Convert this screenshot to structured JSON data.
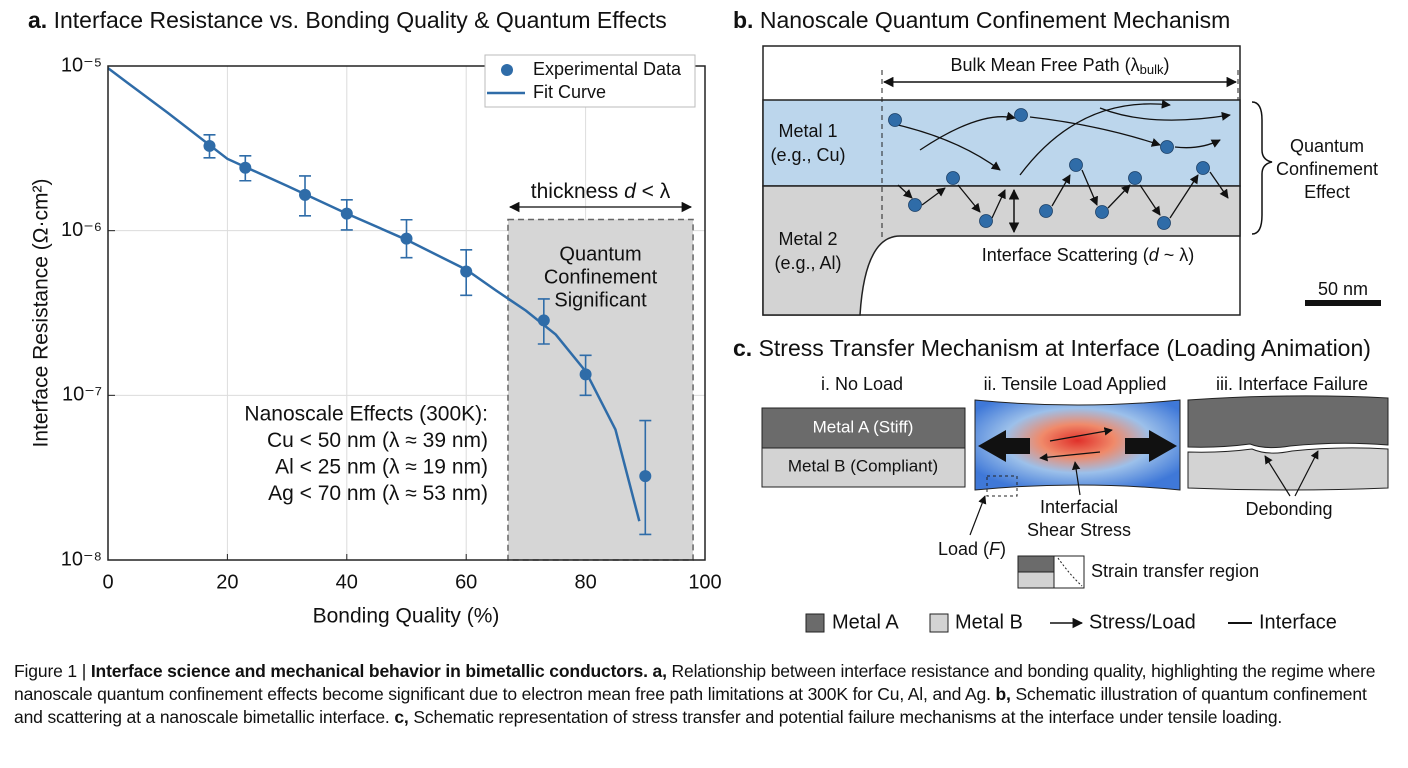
{
  "chart_data": {
    "type": "scatter",
    "title_label": "a.",
    "title": "Interface Resistance vs. Bonding Quality & Quantum Effects",
    "xlabel": "Bonding Quality (%)",
    "ylabel": "Interface Resistance (Ω·cm²)",
    "xlim": [
      0,
      100
    ],
    "xticks": [
      0,
      20,
      40,
      60,
      80,
      100
    ],
    "ylim": [
      1e-08,
      1e-05
    ],
    "yscale": "log",
    "yticks": [
      {
        "value": 1e-08,
        "label": "10⁻⁸"
      },
      {
        "value": 1e-07,
        "label": "10⁻⁷"
      },
      {
        "value": 1e-06,
        "label": "10⁻⁶"
      },
      {
        "value": 1e-05,
        "label": "10⁻⁵"
      }
    ],
    "grid": true,
    "legend": "upper right",
    "series": [
      {
        "name": "Experimental Data",
        "type": "scatter",
        "color": "#2f6ca8",
        "x": [
          17,
          23,
          33,
          40,
          50,
          60,
          73,
          80,
          90
        ],
        "values": [
          3.27e-06,
          2.41e-06,
          1.65e-06,
          1.27e-06,
          8.95e-07,
          5.65e-07,
          2.85e-07,
          1.34e-07,
          3.23e-08
        ],
        "yerr": [
          [
            5e-07,
            5.5e-07
          ],
          [
            4e-07,
            4.4e-07
          ],
          [
            4.2e-07,
            5e-07
          ],
          [
            2.6e-07,
            2.7e-07
          ],
          [
            2.1e-07,
            2.7e-07
          ],
          [
            1.6e-07,
            2e-07
          ],
          [
            8e-08,
            1e-07
          ],
          [
            3.4e-08,
            4.1e-08
          ],
          [
            1.8e-08,
            3.8e-08
          ]
        ]
      },
      {
        "name": "Fit Curve",
        "type": "line",
        "color": "#2f6ca8",
        "x": [
          0,
          5,
          10,
          20,
          30,
          40,
          50,
          60,
          65,
          70,
          75,
          80,
          85,
          89
        ],
        "values": [
          9.7e-06,
          7.1e-06,
          5.2e-06,
          2.73e-06,
          1.87e-06,
          1.27e-06,
          8.8e-07,
          5.8e-07,
          4.33e-07,
          3.27e-07,
          2.34e-07,
          1.4e-07,
          6.2e-08,
          1.72e-08
        ]
      }
    ],
    "region": {
      "x": [
        67,
        98
      ],
      "top": 1.17e-06,
      "label": [
        "Quantum",
        "Confinement",
        "Significant"
      ],
      "annotation": [
        "thickness ",
        "d",
        " < λ"
      ]
    },
    "note": [
      "Nanoscale Effects (300K):",
      "Cu < 50 nm (λ ≈ 39 nm)",
      "Al < 25 nm (λ ≈ 19 nm)",
      "Ag < 70 nm (λ ≈ 53 nm)"
    ]
  },
  "panel_b": {
    "label": "b.",
    "title": "Nanoscale Quantum Confinement Mechanism",
    "mfp": [
      "Bulk Mean Free Path (λ",
      "bulk",
      ")"
    ],
    "metal1": [
      "Metal 1",
      "(e.g., Cu)"
    ],
    "metal2": [
      "Metal 2",
      "(e.g., Al)"
    ],
    "scattering": [
      "Interface Scattering (",
      "d",
      " ~ λ)"
    ],
    "effect": [
      "Quantum",
      "Confinement",
      "Effect"
    ],
    "scale_bar": "50 nm"
  },
  "panel_c": {
    "label": "c.",
    "title": "Stress Transfer Mechanism at Interface (Loading Animation)",
    "stages": [
      "i. No Load",
      "ii. Tensile Load Applied",
      "iii. Interface Failure"
    ],
    "metal_a": "Metal A (Stiff)",
    "metal_b": "Metal B (Compliant)",
    "shear": [
      "Interfacial",
      "Shear Stress"
    ],
    "load": [
      "Load (",
      "F",
      ")"
    ],
    "strain": "Strain transfer region",
    "debonding": "Debonding",
    "legend": [
      "Metal A",
      "Metal B",
      "Stress/Load",
      "Interface"
    ]
  },
  "caption": {
    "segments": [
      {
        "text": "Figure 1 | ",
        "bold": false
      },
      {
        "text": "Interface science and mechanical behavior in bimetallic conductors. a, ",
        "bold": true
      },
      {
        "text": "Relationship between interface resistance and bonding quality, highlighting the regime where nanoscale quantum confinement effects become significant due to electron mean free path limitations at 300K for Cu, Al, and Ag. ",
        "bold": false
      },
      {
        "text": "b, ",
        "bold": true
      },
      {
        "text": "Schematic illustration of quantum confinement and scattering at a nanoscale bimetallic interface. ",
        "bold": false
      },
      {
        "text": "c, ",
        "bold": true
      },
      {
        "text": "Schematic representation of stress transfer and potential failure mechanisms at the interface under tensile loading.",
        "bold": false
      }
    ]
  }
}
